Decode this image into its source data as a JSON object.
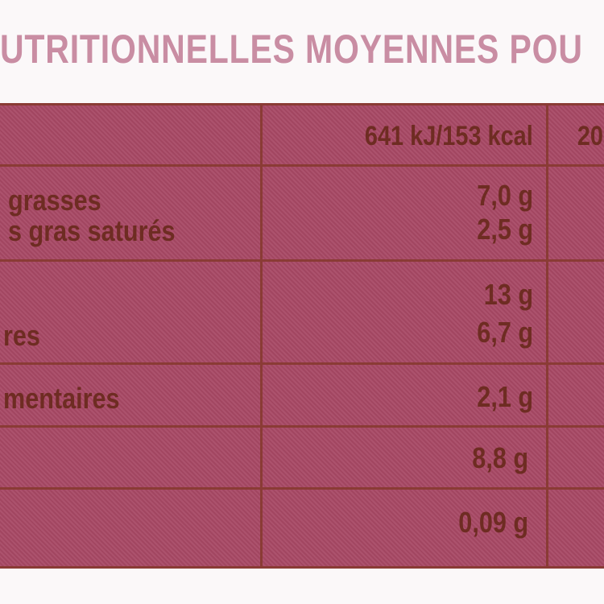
{
  "header": {
    "title": "UTRITIONNELLES MOYENNES POU"
  },
  "table": {
    "columns": [
      "641 kJ/153 kcal",
      "20"
    ],
    "rows": [
      {
        "labels": [
          "grasses",
          "s gras saturés"
        ],
        "values": [
          "7,0 g",
          "2,5 g"
        ]
      },
      {
        "labels": [
          "res"
        ],
        "values": [
          "13 g",
          "6,7 g"
        ]
      },
      {
        "labels": [
          "mentaires"
        ],
        "values": [
          "2,1 g"
        ]
      },
      {
        "values": [
          "8,8 g"
        ]
      },
      {
        "values": [
          "0,09 g"
        ]
      }
    ]
  }
}
